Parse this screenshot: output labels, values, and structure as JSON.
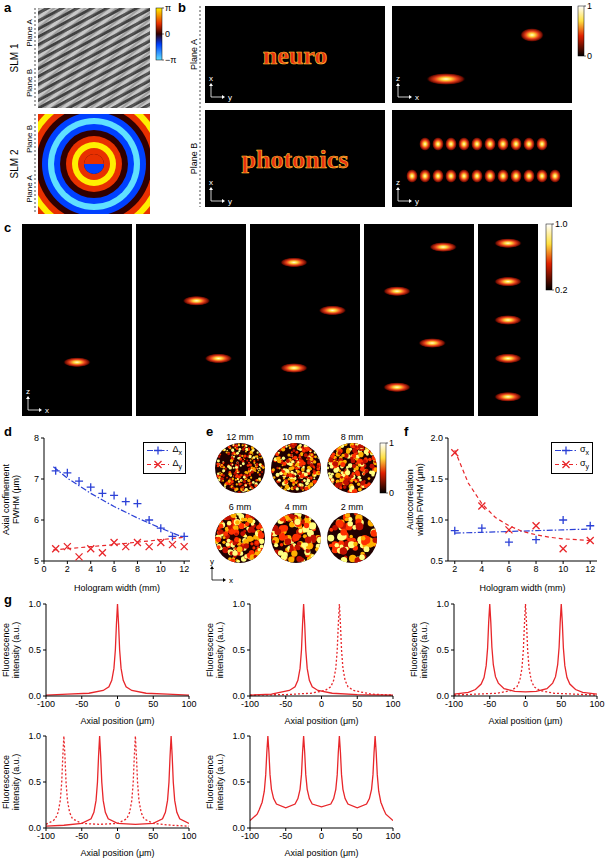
{
  "chart_data": [
    {
      "panel": "d",
      "type": "scatter",
      "x_label": "Hologram width (mm)",
      "y_label": "Axial confinement FWHM (μm)",
      "xlim": [
        0,
        12.5
      ],
      "xticks": [
        0,
        2,
        4,
        6,
        8,
        10,
        12
      ],
      "ylim": [
        5,
        8
      ],
      "yticks": [
        5,
        6,
        7,
        8
      ],
      "legend": "upper right",
      "series": [
        {
          "name": "Δx",
          "color": "#2b40d6",
          "marker": "plus",
          "line_style": "dashdot",
          "x": [
            1,
            2,
            3,
            4,
            5,
            6,
            7,
            8,
            9,
            10,
            11,
            12
          ],
          "values": [
            7.2,
            7.15,
            6.95,
            6.8,
            6.65,
            6.6,
            6.45,
            6.4,
            6.0,
            5.8,
            5.6,
            5.6
          ],
          "fit_x": [
            0.8,
            2,
            4,
            6,
            8,
            10,
            12
          ],
          "fit_values": [
            7.3,
            7.02,
            6.65,
            6.33,
            6.05,
            5.8,
            5.57
          ]
        },
        {
          "name": "Δy",
          "color": "#e8262a",
          "marker": "x",
          "line_style": "dashed",
          "x": [
            1,
            2,
            3,
            4,
            5,
            6,
            7,
            8,
            9,
            10,
            11,
            12
          ],
          "values": [
            5.3,
            5.35,
            5.1,
            5.3,
            5.2,
            5.45,
            5.35,
            5.45,
            5.35,
            5.45,
            5.4,
            5.35
          ],
          "fit_x": [
            0.8,
            2,
            4,
            6,
            8,
            10,
            12
          ],
          "fit_values": [
            5.27,
            5.3,
            5.35,
            5.4,
            5.46,
            5.52,
            5.58
          ]
        }
      ]
    },
    {
      "panel": "f",
      "type": "scatter",
      "x_label": "Hologram width (mm)",
      "y_label": "Autocorrelation width FWHM (μm)",
      "xlim": [
        1.5,
        12.5
      ],
      "xticks": [
        2,
        4,
        6,
        8,
        10,
        12
      ],
      "ylim": [
        0.5,
        2.0
      ],
      "yticks": [
        0.5,
        {
          "value": 1,
          "label": "1.0"
        },
        1.5,
        {
          "value": 2,
          "label": "2.0"
        }
      ],
      "legend": "upper right",
      "series": [
        {
          "name": "σx",
          "color": "#2b40d6",
          "marker": "plus",
          "line_style": "dashdot",
          "x": [
            2,
            4,
            6,
            8,
            10,
            12
          ],
          "values": [
            0.87,
            0.9,
            0.73,
            0.76,
            1.0,
            0.93
          ],
          "fit_x": [
            2,
            4,
            6,
            8,
            10,
            12
          ],
          "fit_values": [
            0.84,
            0.85,
            0.86,
            0.87,
            0.88,
            0.89
          ]
        },
        {
          "name": "σy",
          "color": "#e8262a",
          "marker": "x",
          "line_style": "dashed",
          "x": [
            2,
            4,
            6,
            8,
            10,
            12
          ],
          "values": [
            1.82,
            1.17,
            0.88,
            0.93,
            0.65,
            0.75
          ],
          "fit_x": [
            2,
            3,
            4,
            5,
            6,
            7,
            8,
            9,
            10,
            11,
            12
          ],
          "fit_values": [
            1.85,
            1.45,
            1.2,
            1.03,
            0.93,
            0.86,
            0.82,
            0.79,
            0.77,
            0.76,
            0.75
          ]
        }
      ]
    },
    {
      "panel": "g",
      "type": "line",
      "x_label": "Axial position (μm)",
      "y_label": "Fluorescence intensity (a.u.)",
      "xlim": [
        -100,
        100
      ],
      "xticks": [
        -100,
        -50,
        0,
        50,
        100
      ],
      "ylim": [
        0,
        1
      ],
      "yticks": [
        {
          "value": 0,
          "label": "0.0"
        },
        0.5,
        {
          "value": 1,
          "label": "1.0"
        }
      ],
      "series": [
        {
          "color": "#e8262a",
          "line_style": "solid",
          "x": [
            -100,
            -70,
            -40,
            -20,
            -12,
            -8,
            -5,
            -3,
            -1.5,
            0,
            1.5,
            3,
            5,
            8,
            12,
            20,
            40,
            70,
            100
          ],
          "values": [
            0.01,
            0.02,
            0.03,
            0.06,
            0.1,
            0.17,
            0.3,
            0.5,
            0.78,
            1.0,
            0.78,
            0.5,
            0.3,
            0.17,
            0.1,
            0.06,
            0.03,
            0.02,
            0.01
          ]
        }
      ]
    },
    {
      "type": "line",
      "x_label": "Axial position (μm)",
      "y_label": "Fluorescence intensity (a.u.)",
      "xlim": [
        -100,
        100
      ],
      "xticks": [
        -100,
        -50,
        0,
        50,
        100
      ],
      "ylim": [
        0,
        1
      ],
      "yticks": [
        {
          "value": 0,
          "label": "0.0"
        },
        0.5,
        {
          "value": 1,
          "label": "1.0"
        }
      ],
      "series": [
        {
          "color": "#e8262a",
          "line_style": "solid",
          "x": [
            -100,
            -70,
            -45,
            -37,
            -33,
            -30,
            -28,
            -26.5,
            -25,
            -23.5,
            -22,
            -20,
            -17,
            -13,
            -5,
            15,
            50,
            100
          ],
          "values": [
            0.01,
            0.02,
            0.06,
            0.1,
            0.17,
            0.3,
            0.5,
            0.78,
            1.0,
            0.78,
            0.5,
            0.3,
            0.17,
            0.1,
            0.06,
            0.03,
            0.015,
            0.01
          ]
        },
        {
          "color": "#e8262a",
          "line_style": "dotted",
          "x": [
            -100,
            -50,
            -15,
            5,
            13,
            17,
            20,
            22,
            23.5,
            25,
            26.5,
            28,
            30,
            33,
            37,
            45,
            70,
            100
          ],
          "values": [
            0.01,
            0.015,
            0.03,
            0.06,
            0.1,
            0.17,
            0.3,
            0.5,
            0.78,
            1.0,
            0.78,
            0.5,
            0.3,
            0.17,
            0.1,
            0.06,
            0.02,
            0.01
          ]
        }
      ]
    },
    {
      "type": "line",
      "x_label": "Axial position (μm)",
      "y_label": "Fluorescence intensity (a.u.)",
      "xlim": [
        -100,
        100
      ],
      "xticks": [
        -100,
        -50,
        0,
        50,
        100
      ],
      "ylim": [
        0,
        1
      ],
      "yticks": [
        {
          "value": 0,
          "label": "0.0"
        },
        0.5,
        {
          "value": 1,
          "label": "1.0"
        }
      ],
      "series": [
        {
          "color": "#e8262a",
          "line_style": "solid",
          "x": [
            -100,
            -80,
            -70,
            -62,
            -58,
            -55,
            -53,
            -51.5,
            -50,
            -48.5,
            -47,
            -45,
            -42,
            -38,
            -30,
            -15,
            0,
            15,
            30,
            38,
            42,
            45,
            47,
            48.5,
            50,
            51.5,
            53,
            55,
            58,
            62,
            70,
            80,
            100
          ],
          "values": [
            0.02,
            0.04,
            0.07,
            0.13,
            0.2,
            0.33,
            0.52,
            0.8,
            1.0,
            0.8,
            0.53,
            0.34,
            0.21,
            0.14,
            0.08,
            0.05,
            0.045,
            0.05,
            0.08,
            0.14,
            0.21,
            0.34,
            0.53,
            0.8,
            1.0,
            0.8,
            0.52,
            0.33,
            0.2,
            0.13,
            0.07,
            0.04,
            0.02
          ]
        },
        {
          "color": "#e8262a",
          "line_style": "dotted",
          "x": [
            -100,
            -70,
            -40,
            -20,
            -12,
            -8,
            -5,
            -3,
            -1.5,
            0,
            1.5,
            3,
            5,
            8,
            12,
            20,
            40,
            70,
            100
          ],
          "values": [
            0.01,
            0.02,
            0.03,
            0.06,
            0.1,
            0.17,
            0.3,
            0.5,
            0.78,
            1.0,
            0.78,
            0.5,
            0.3,
            0.17,
            0.1,
            0.06,
            0.03,
            0.02,
            0.01
          ]
        }
      ]
    },
    {
      "type": "line",
      "x_label": "Axial position (μm)",
      "y_label": "Fluorescence intensity (a.u.)",
      "xlim": [
        -100,
        100
      ],
      "xticks": [
        -100,
        -50,
        0,
        50,
        100
      ],
      "ylim": [
        0,
        1
      ],
      "yticks": [
        {
          "value": 0,
          "label": "0.0"
        },
        0.5,
        {
          "value": 1,
          "label": "1.0"
        }
      ],
      "series": [
        {
          "color": "#e8262a",
          "line_style": "dotted",
          "x": [
            -100,
            -90,
            -87,
            -83,
            -80,
            -78,
            -76.5,
            -75,
            -73.5,
            -72,
            -70,
            -67,
            -63,
            -50,
            -25,
            0,
            13,
            17,
            20,
            22,
            23.5,
            25,
            26.5,
            28,
            30,
            33,
            37,
            50,
            75,
            100
          ],
          "values": [
            0.04,
            0.08,
            0.1,
            0.17,
            0.3,
            0.5,
            0.78,
            1.0,
            0.78,
            0.5,
            0.3,
            0.17,
            0.1,
            0.05,
            0.04,
            0.05,
            0.1,
            0.17,
            0.3,
            0.5,
            0.78,
            1.0,
            0.78,
            0.5,
            0.3,
            0.17,
            0.1,
            0.05,
            0.03,
            0.02
          ]
        },
        {
          "color": "#e8262a",
          "line_style": "solid",
          "x": [
            -100,
            -75,
            -50,
            -37,
            -33,
            -30,
            -28,
            -26.5,
            -25,
            -23.5,
            -22,
            -20,
            -17,
            -13,
            0,
            25,
            50,
            63,
            67,
            70,
            72,
            73.5,
            75,
            76.5,
            78,
            80,
            83,
            87,
            100
          ],
          "values": [
            0.02,
            0.03,
            0.05,
            0.1,
            0.17,
            0.3,
            0.5,
            0.78,
            1.0,
            0.78,
            0.5,
            0.3,
            0.17,
            0.1,
            0.05,
            0.04,
            0.05,
            0.1,
            0.17,
            0.3,
            0.5,
            0.78,
            1.0,
            0.78,
            0.5,
            0.3,
            0.17,
            0.1,
            0.05
          ]
        }
      ]
    },
    {
      "type": "line",
      "x_label": "Axial position (μm)",
      "y_label": "Fluorescence intensity (a.u.)",
      "xlim": [
        -100,
        100
      ],
      "xticks": [
        -100,
        -50,
        0,
        50,
        100
      ],
      "ylim": [
        0,
        1
      ],
      "yticks": [
        {
          "value": 0,
          "label": "0.0"
        },
        0.5,
        {
          "value": 1,
          "label": "1.0"
        }
      ],
      "series": [
        {
          "color": "#e8262a",
          "line_style": "solid",
          "x": [
            -100,
            -90,
            -87,
            -83,
            -80,
            -78,
            -76.5,
            -75,
            -73.5,
            -72,
            -70,
            -67,
            -63,
            -50,
            -37,
            -33,
            -30,
            -28,
            -26.5,
            -25,
            -23.5,
            -22,
            -20,
            -17,
            -13,
            0,
            13,
            17,
            20,
            22,
            23.5,
            25,
            26.5,
            28,
            30,
            33,
            37,
            50,
            63,
            67,
            70,
            72,
            73.5,
            75,
            76.5,
            78,
            80,
            83,
            87,
            90,
            100
          ],
          "values": [
            0.08,
            0.15,
            0.2,
            0.28,
            0.4,
            0.58,
            0.82,
            1.0,
            0.82,
            0.58,
            0.42,
            0.32,
            0.26,
            0.22,
            0.26,
            0.32,
            0.42,
            0.58,
            0.82,
            1.0,
            0.82,
            0.58,
            0.42,
            0.32,
            0.26,
            0.23,
            0.26,
            0.32,
            0.42,
            0.58,
            0.82,
            1.0,
            0.82,
            0.58,
            0.42,
            0.32,
            0.26,
            0.22,
            0.26,
            0.32,
            0.42,
            0.58,
            0.82,
            1.0,
            0.82,
            0.58,
            0.4,
            0.28,
            0.2,
            0.15,
            0.08
          ]
        }
      ]
    }
  ],
  "images": {
    "a": {
      "panel": "a",
      "rows": [
        "SLM 1",
        "SLM 2"
      ],
      "planes": [
        "Plane A",
        "Plane B"
      ],
      "colorbar": {
        "range": [
          -3.14159,
          3.14159
        ],
        "ticks": [
          {
            "value": 3.14159,
            "label": "π"
          },
          0,
          {
            "value": -3.14159,
            "label": "−π"
          }
        ]
      }
    },
    "b": {
      "panel": "b",
      "planes": [
        "Plane A",
        "Plane B"
      ],
      "texts": [
        "neuro",
        "photonics"
      ],
      "axes": [
        [
          "x",
          "y"
        ],
        [
          "z",
          "x"
        ],
        [
          "x",
          "y"
        ],
        [
          "z",
          "y"
        ]
      ],
      "colorbar": {
        "range": [
          0,
          1
        ],
        "ticks": [
          1,
          0
        ]
      }
    },
    "c": {
      "panel": "c",
      "axes": [
        "z",
        "x"
      ],
      "colorbar": {
        "range": [
          0.2,
          1
        ],
        "ticks": [
          {
            "value": 1,
            "label": "1.0"
          },
          0.2
        ]
      }
    },
    "e": {
      "panel": "e",
      "labels": [
        "12 mm",
        "10 mm",
        "8 mm",
        "6 mm",
        "4 mm",
        "2 mm"
      ],
      "axes": [
        "y",
        "x"
      ],
      "colorbar": {
        "range": [
          0,
          1
        ],
        "ticks": [
          1,
          0
        ]
      }
    }
  }
}
